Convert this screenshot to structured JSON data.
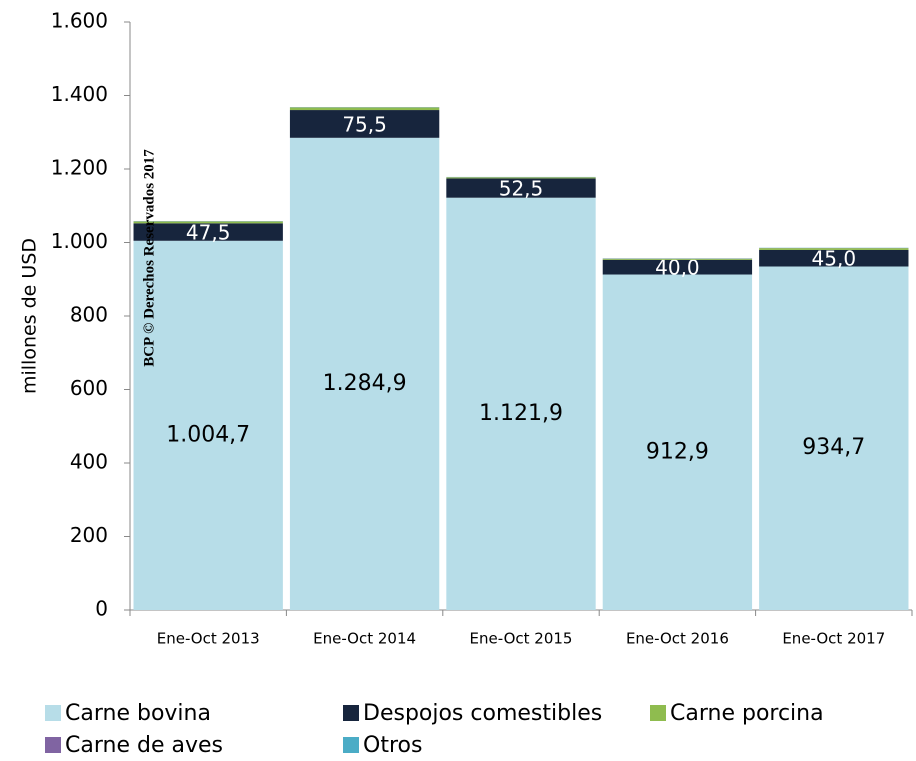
{
  "chart_data": {
    "type": "stacked_bar",
    "ylabel": "millones de  USD",
    "watermark": "BCP © Derechos Reservados 2017",
    "categories": [
      "Ene-Oct 2013",
      "Ene-Oct 2014",
      "Ene-Oct 2015",
      "Ene-Oct 2016",
      "Ene-Oct 2017"
    ],
    "series": [
      {
        "name": "Carne bovina",
        "color": "#b7dde8",
        "values": [
          1004.7,
          1284.9,
          1121.9,
          912.9,
          934.7
        ],
        "value_labels": [
          "1.004,7",
          "1.284,9",
          "1.121,9",
          "912,9",
          "934,7"
        ]
      },
      {
        "name": "Despojos comestibles",
        "color": "#17253d",
        "values": [
          47.5,
          75.5,
          52.5,
          40.0,
          45.0
        ],
        "value_labels": [
          "47,5",
          "75,5",
          "52,5",
          "40,0",
          "45,0"
        ]
      },
      {
        "name": "Carne porcina",
        "color": "#8fbc4f",
        "values": [
          5,
          7,
          3,
          3,
          5
        ]
      },
      {
        "name": "Carne de aves",
        "color": "#8064a2",
        "values": [
          0.5,
          0.5,
          0.5,
          0.5,
          0.5
        ]
      },
      {
        "name": "Otros",
        "color": "#4bacc6",
        "values": [
          0.5,
          0.5,
          0.5,
          0.5,
          0.5
        ]
      }
    ],
    "ylim": [
      0,
      1600
    ],
    "yticks": [
      0,
      200,
      400,
      600,
      800,
      {
        "value": 1000,
        "label": "1.000"
      },
      {
        "value": 1200,
        "label": "1.200"
      },
      {
        "value": 1400,
        "label": "1.400"
      },
      {
        "value": 1600,
        "label": "1.600"
      }
    ],
    "grid": false,
    "legend": "bottom"
  }
}
